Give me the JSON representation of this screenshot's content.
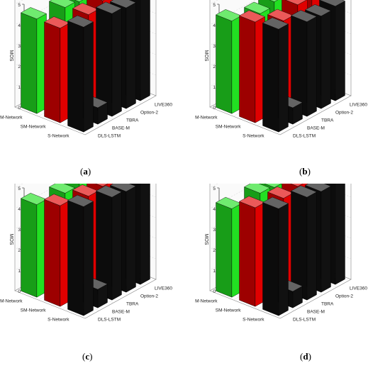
{
  "figure": {
    "panels": [
      {
        "caption_open": "(",
        "caption_letter": "a",
        "caption_close": ")"
      },
      {
        "caption_open": "(",
        "caption_letter": "b",
        "caption_close": ")"
      },
      {
        "caption_open": "(",
        "caption_letter": "c",
        "caption_close": ")"
      },
      {
        "caption_open": "(",
        "caption_letter": "d",
        "caption_close": ")"
      }
    ]
  },
  "chart_data": [
    {
      "type": "bar",
      "panel": "a",
      "zlabel": "MOS",
      "zlim": [
        0,
        5
      ],
      "zticks": [
        "0",
        "1",
        "2",
        "3",
        "4",
        "5"
      ],
      "x_categories": [
        "S-Network",
        "SM-Network",
        "FM-Network"
      ],
      "y_categories": [
        "DLS-LSTM",
        "BASE-M",
        "TBRA",
        "Option-2",
        "LIVE360"
      ],
      "series": [
        {
          "x_category": "S-Network",
          "values": [
            5.1,
            0.8,
            5.0,
            4.9,
            5.2
          ]
        },
        {
          "x_category": "SM-Network",
          "values": [
            4.6,
            1.1,
            4.5,
            4.8,
            4.9
          ]
        },
        {
          "x_category": "FM-Network",
          "values": [
            4.6,
            0.8,
            4.4,
            4.3,
            4.4
          ]
        }
      ],
      "colors": {
        "S-Network": "#111111",
        "SM-Network": "#e00000",
        "FM-Network": "#22e022"
      }
    },
    {
      "type": "bar",
      "panel": "b",
      "zlabel": "MOS",
      "zlim": [
        0,
        5
      ],
      "zticks": [
        "0",
        "1",
        "2",
        "3",
        "4",
        "5"
      ],
      "x_categories": [
        "S-Network",
        "SM-Network",
        "FM-Network"
      ],
      "y_categories": [
        "DLS-LSTM",
        "BASE-M",
        "TBRA",
        "Option-2",
        "LIVE360"
      ],
      "series": [
        {
          "x_category": "S-Network",
          "values": [
            5.0,
            0.8,
            4.6,
            4.5,
            4.6
          ]
        },
        {
          "x_category": "SM-Network",
          "values": [
            4.9,
            1.1,
            4.2,
            4.6,
            4.8
          ]
        },
        {
          "x_category": "FM-Network",
          "values": [
            4.5,
            0.9,
            4.1,
            4.3,
            4.3
          ]
        }
      ],
      "colors": {
        "S-Network": "#111111",
        "SM-Network": "#e00000",
        "FM-Network": "#22e022"
      }
    },
    {
      "type": "bar",
      "panel": "c",
      "zlabel": "MOS",
      "zlim": [
        0,
        5
      ],
      "zticks": [
        "0",
        "1",
        "2",
        "3",
        "4",
        "5"
      ],
      "x_categories": [
        "S-Network",
        "SM-Network",
        "FM-Network"
      ],
      "y_categories": [
        "DLS-LSTM",
        "BASE-M",
        "TBRA",
        "Option-2",
        "LIVE360"
      ],
      "series": [
        {
          "x_category": "S-Network",
          "values": [
            5.3,
            0.9,
            5.0,
            4.9,
            5.2
          ]
        },
        {
          "x_category": "SM-Network",
          "values": [
            4.9,
            1.0,
            4.6,
            4.7,
            4.9
          ]
        },
        {
          "x_category": "FM-Network",
          "values": [
            4.5,
            0.9,
            4.3,
            4.4,
            4.3
          ]
        }
      ],
      "colors": {
        "S-Network": "#111111",
        "SM-Network": "#e00000",
        "FM-Network": "#22e022"
      }
    },
    {
      "type": "bar",
      "panel": "d",
      "zlabel": "MOS",
      "zlim": [
        0,
        5
      ],
      "zticks": [
        "0",
        "1",
        "2",
        "3",
        "4",
        "5"
      ],
      "x_categories": [
        "S-Network",
        "SM-Network",
        "FM-Network"
      ],
      "y_categories": [
        "DLS-LSTM",
        "BASE-M",
        "TBRA",
        "Option-2",
        "LIVE360"
      ],
      "series": [
        {
          "x_category": "S-Network",
          "values": [
            5.2,
            0.8,
            5.0,
            4.9,
            4.9
          ]
        },
        {
          "x_category": "SM-Network",
          "values": [
            4.8,
            1.0,
            4.5,
            4.7,
            4.9
          ]
        },
        {
          "x_category": "FM-Network",
          "values": [
            4.3,
            0.9,
            4.3,
            4.2,
            4.3
          ]
        }
      ],
      "colors": {
        "S-Network": "#111111",
        "SM-Network": "#e00000",
        "FM-Network": "#22e022"
      }
    }
  ]
}
